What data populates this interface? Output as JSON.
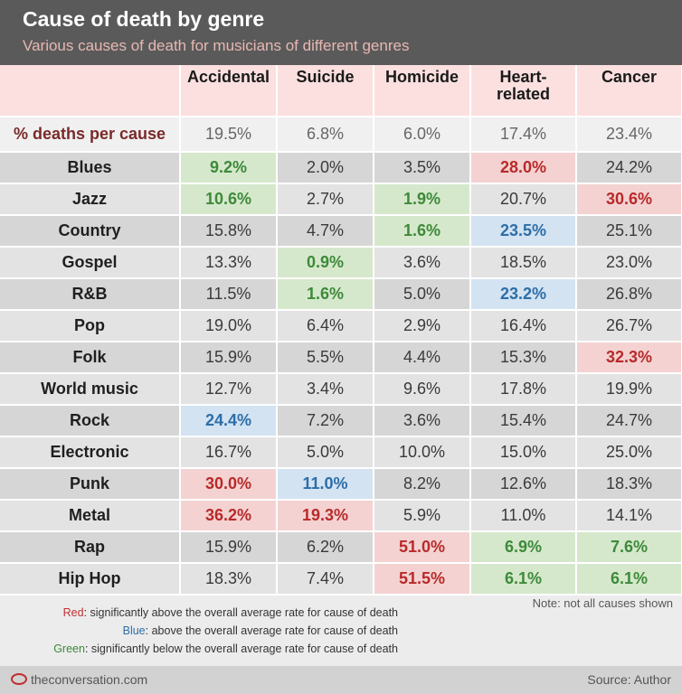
{
  "title": "Cause of death by genre",
  "subtitle": "Various causes of death for musicians of different genres",
  "columns": [
    "Accidental",
    "Suicide",
    "Homicide",
    "Heart-related",
    "Cancer"
  ],
  "average_row": {
    "label": "% deaths per cause",
    "values": [
      "19.5%",
      "6.8%",
      "6.0%",
      "17.4%",
      "23.4%"
    ]
  },
  "rows": [
    {
      "genre": "Blues",
      "values": [
        "9.2%",
        "2.0%",
        "3.5%",
        "28.0%",
        "24.2%"
      ],
      "flags": [
        "green",
        "",
        "",
        "red",
        ""
      ]
    },
    {
      "genre": "Jazz",
      "values": [
        "10.6%",
        "2.7%",
        "1.9%",
        "20.7%",
        "30.6%"
      ],
      "flags": [
        "green",
        "",
        "green",
        "",
        "red"
      ]
    },
    {
      "genre": "Country",
      "values": [
        "15.8%",
        "4.7%",
        "1.6%",
        "23.5%",
        "25.1%"
      ],
      "flags": [
        "",
        "",
        "green",
        "blue",
        ""
      ]
    },
    {
      "genre": "Gospel",
      "values": [
        "13.3%",
        "0.9%",
        "3.6%",
        "18.5%",
        "23.0%"
      ],
      "flags": [
        "",
        "green",
        "",
        "",
        ""
      ]
    },
    {
      "genre": "R&B",
      "values": [
        "11.5%",
        "1.6%",
        "5.0%",
        "23.2%",
        "26.8%"
      ],
      "flags": [
        "",
        "green",
        "",
        "blue",
        ""
      ]
    },
    {
      "genre": "Pop",
      "values": [
        "19.0%",
        "6.4%",
        "2.9%",
        "16.4%",
        "26.7%"
      ],
      "flags": [
        "",
        "",
        "",
        "",
        ""
      ]
    },
    {
      "genre": "Folk",
      "values": [
        "15.9%",
        "5.5%",
        "4.4%",
        "15.3%",
        "32.3%"
      ],
      "flags": [
        "",
        "",
        "",
        "",
        "red"
      ]
    },
    {
      "genre": "World music",
      "values": [
        "12.7%",
        "3.4%",
        "9.6%",
        "17.8%",
        "19.9%"
      ],
      "flags": [
        "",
        "",
        "",
        "",
        ""
      ]
    },
    {
      "genre": "Rock",
      "values": [
        "24.4%",
        "7.2%",
        "3.6%",
        "15.4%",
        "24.7%"
      ],
      "flags": [
        "blue",
        "",
        "",
        "",
        ""
      ]
    },
    {
      "genre": "Electronic",
      "values": [
        "16.7%",
        "5.0%",
        "10.0%",
        "15.0%",
        "25.0%"
      ],
      "flags": [
        "",
        "",
        "",
        "",
        ""
      ]
    },
    {
      "genre": "Punk",
      "values": [
        "30.0%",
        "11.0%",
        "8.2%",
        "12.6%",
        "18.3%"
      ],
      "flags": [
        "red",
        "blue",
        "",
        "",
        ""
      ]
    },
    {
      "genre": "Metal",
      "values": [
        "36.2%",
        "19.3%",
        "5.9%",
        "11.0%",
        "14.1%"
      ],
      "flags": [
        "red",
        "red",
        "",
        "",
        ""
      ]
    },
    {
      "genre": "Rap",
      "values": [
        "15.9%",
        "6.2%",
        "51.0%",
        "6.9%",
        "7.6%"
      ],
      "flags": [
        "",
        "",
        "red",
        "green",
        "green"
      ]
    },
    {
      "genre": "Hip Hop",
      "values": [
        "18.3%",
        "7.4%",
        "51.5%",
        "6.1%",
        "6.1%"
      ],
      "flags": [
        "",
        "",
        "red",
        "green",
        "green"
      ]
    }
  ],
  "legend": {
    "red_key": "Red",
    "red_text": ": significantly above the overall average rate for cause of death",
    "blue_key": "Blue",
    "blue_text": ": above the overall average rate for cause of death",
    "green_key": "Green",
    "green_text": ": significantly below the overall average rate for cause of death"
  },
  "note": "Note: not all causes shown",
  "footer": {
    "brand": "theconversation.com",
    "source": "Source: Author"
  },
  "colors": {
    "red": "#b82a2a",
    "blue": "#2d6ea8",
    "green": "#3d8a3a",
    "header_bg": "#5a5a5a"
  },
  "chart_data": {
    "type": "table",
    "title": "Cause of death by genre",
    "subtitle": "Various causes of death for musicians of different genres",
    "columns": [
      "Accidental",
      "Suicide",
      "Homicide",
      "Heart-related",
      "Cancer"
    ],
    "average": [
      19.5,
      6.8,
      6.0,
      17.4,
      23.4
    ],
    "rows": [
      {
        "name": "Blues",
        "values": [
          9.2,
          2.0,
          3.5,
          28.0,
          24.2
        ]
      },
      {
        "name": "Jazz",
        "values": [
          10.6,
          2.7,
          1.9,
          20.7,
          30.6
        ]
      },
      {
        "name": "Country",
        "values": [
          15.8,
          4.7,
          1.6,
          23.5,
          25.1
        ]
      },
      {
        "name": "Gospel",
        "values": [
          13.3,
          0.9,
          3.6,
          18.5,
          23.0
        ]
      },
      {
        "name": "R&B",
        "values": [
          11.5,
          1.6,
          5.0,
          23.2,
          26.8
        ]
      },
      {
        "name": "Pop",
        "values": [
          19.0,
          6.4,
          2.9,
          16.4,
          26.7
        ]
      },
      {
        "name": "Folk",
        "values": [
          15.9,
          5.5,
          4.4,
          15.3,
          32.3
        ]
      },
      {
        "name": "World music",
        "values": [
          12.7,
          3.4,
          9.6,
          17.8,
          19.9
        ]
      },
      {
        "name": "Rock",
        "values": [
          24.4,
          7.2,
          3.6,
          15.4,
          24.7
        ]
      },
      {
        "name": "Electronic",
        "values": [
          16.7,
          5.0,
          10.0,
          15.0,
          25.0
        ]
      },
      {
        "name": "Punk",
        "values": [
          30.0,
          11.0,
          8.2,
          12.6,
          18.3
        ]
      },
      {
        "name": "Metal",
        "values": [
          36.2,
          19.3,
          5.9,
          11.0,
          14.1
        ]
      },
      {
        "name": "Rap",
        "values": [
          15.9,
          6.2,
          51.0,
          6.9,
          7.6
        ]
      },
      {
        "name": "Hip Hop",
        "values": [
          18.3,
          7.4,
          51.5,
          6.1,
          6.1
        ]
      }
    ]
  }
}
